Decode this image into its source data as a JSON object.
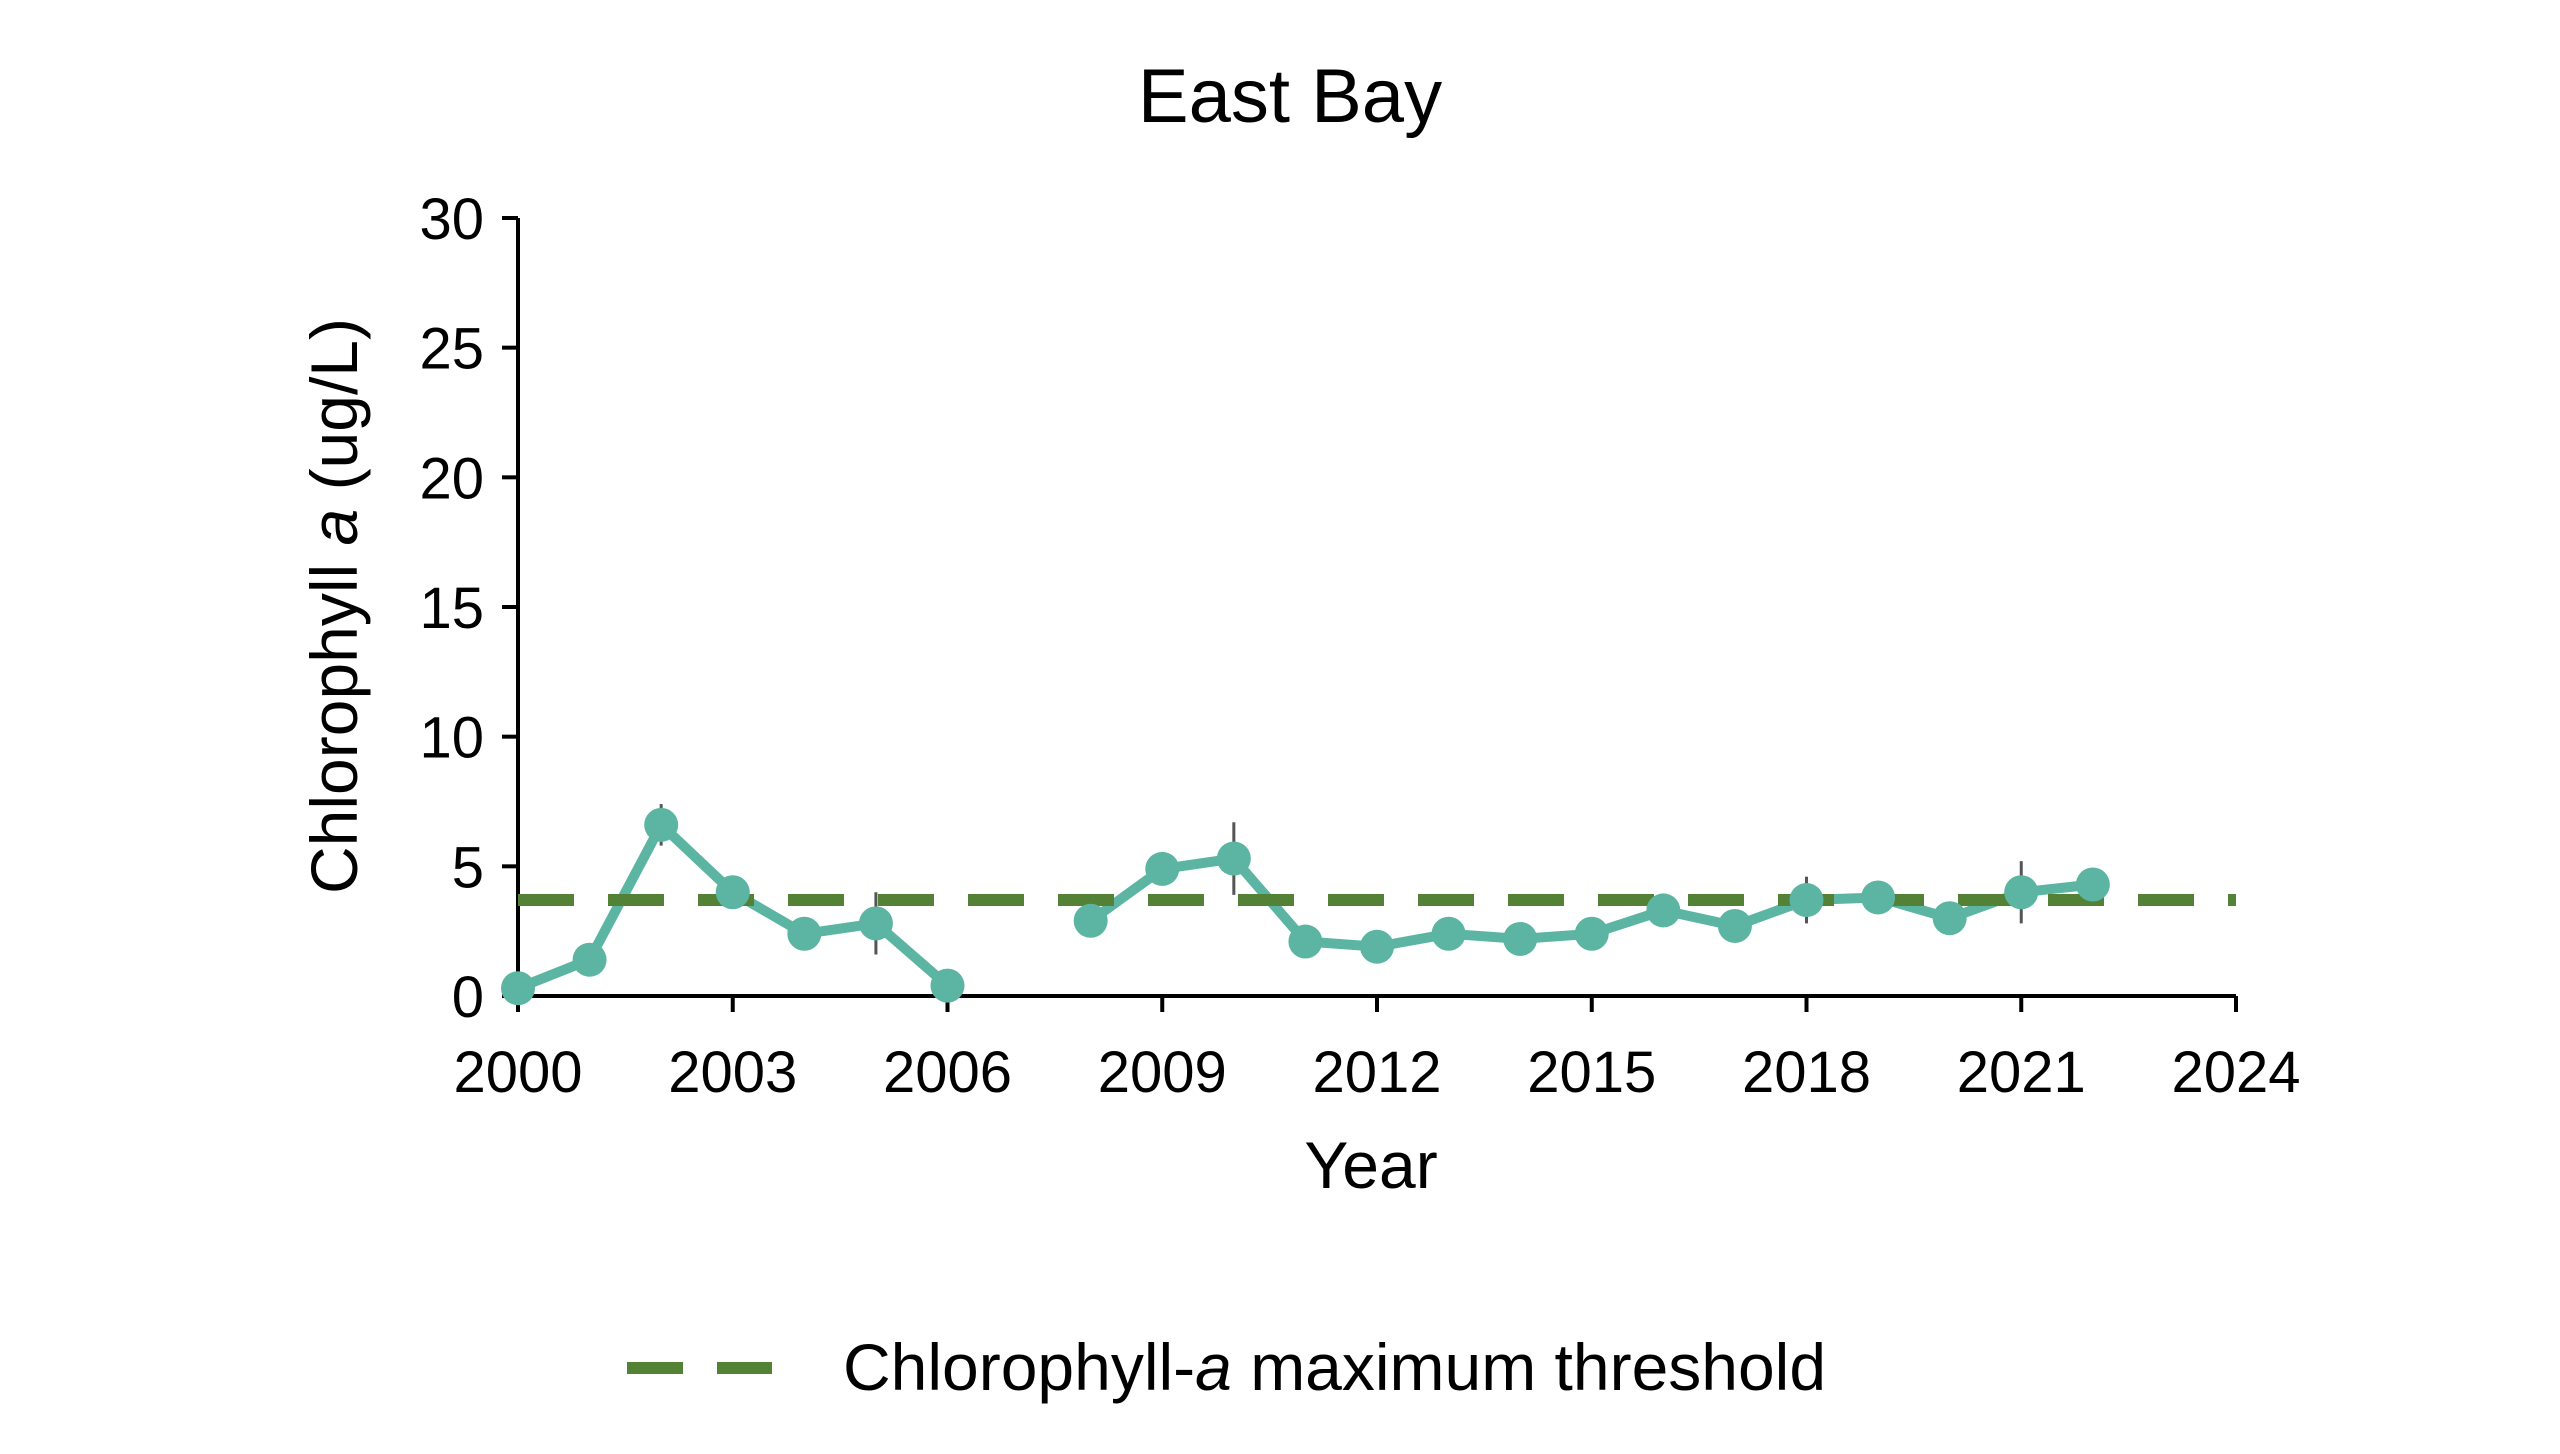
{
  "chart_data": {
    "type": "line",
    "title": "East Bay",
    "xlabel": "Year",
    "ylabel_parts": [
      "Chlorophyll ",
      "a",
      " (ug/L)"
    ],
    "xlim": [
      2000,
      2024
    ],
    "ylim": [
      0,
      30
    ],
    "x_ticks": [
      "2000",
      "2003",
      "2006",
      "2009",
      "2012",
      "2015",
      "2018",
      "2021",
      "2024"
    ],
    "y_ticks": [
      "0",
      "5",
      "10",
      "15",
      "20",
      "25",
      "30"
    ],
    "grid": false,
    "series": [
      {
        "color": "#5bb5a2",
        "marker": "circle",
        "points": [
          {
            "x": 2000,
            "y": 0.3,
            "err": 0.0
          },
          {
            "x": 2001,
            "y": 1.4,
            "err": 0.0
          },
          {
            "x": 2002,
            "y": 6.6,
            "err": 0.8
          },
          {
            "x": 2003,
            "y": 4.0,
            "err": 0.3
          },
          {
            "x": 2004,
            "y": 2.4,
            "err": 0.2
          },
          {
            "x": 2005,
            "y": 2.8,
            "err": 1.2
          },
          {
            "x": 2006,
            "y": 0.4,
            "err": 0.0
          },
          {
            "x": 2007,
            "y": null,
            "err": 0
          },
          {
            "x": 2008,
            "y": 2.9,
            "err": 0.0
          },
          {
            "x": 2009,
            "y": 4.9,
            "err": 0.4
          },
          {
            "x": 2010,
            "y": 5.3,
            "err": 1.4
          },
          {
            "x": 2011,
            "y": 2.1,
            "err": 0.2
          },
          {
            "x": 2012,
            "y": 1.9,
            "err": 0.2
          },
          {
            "x": 2013,
            "y": 2.4,
            "err": 0.2
          },
          {
            "x": 2014,
            "y": 2.2,
            "err": 0.2
          },
          {
            "x": 2015,
            "y": 2.4,
            "err": 0.2
          },
          {
            "x": 2016,
            "y": 3.3,
            "err": 0.3
          },
          {
            "x": 2017,
            "y": 2.7,
            "err": 0.3
          },
          {
            "x": 2018,
            "y": 3.7,
            "err": 0.9
          },
          {
            "x": 2019,
            "y": 3.8,
            "err": 0.4
          },
          {
            "x": 2020,
            "y": 3.0,
            "err": 0.3
          },
          {
            "x": 2021,
            "y": 4.0,
            "err": 1.2
          },
          {
            "x": 2022,
            "y": 4.3,
            "err": 0.6
          }
        ]
      }
    ],
    "threshold": {
      "y": 3.7,
      "color": "#538135",
      "style": "dashed",
      "legend_parts": [
        "Chlorophyll-",
        "a",
        " maximum threshold"
      ]
    },
    "legend_position": "bottom-center"
  }
}
